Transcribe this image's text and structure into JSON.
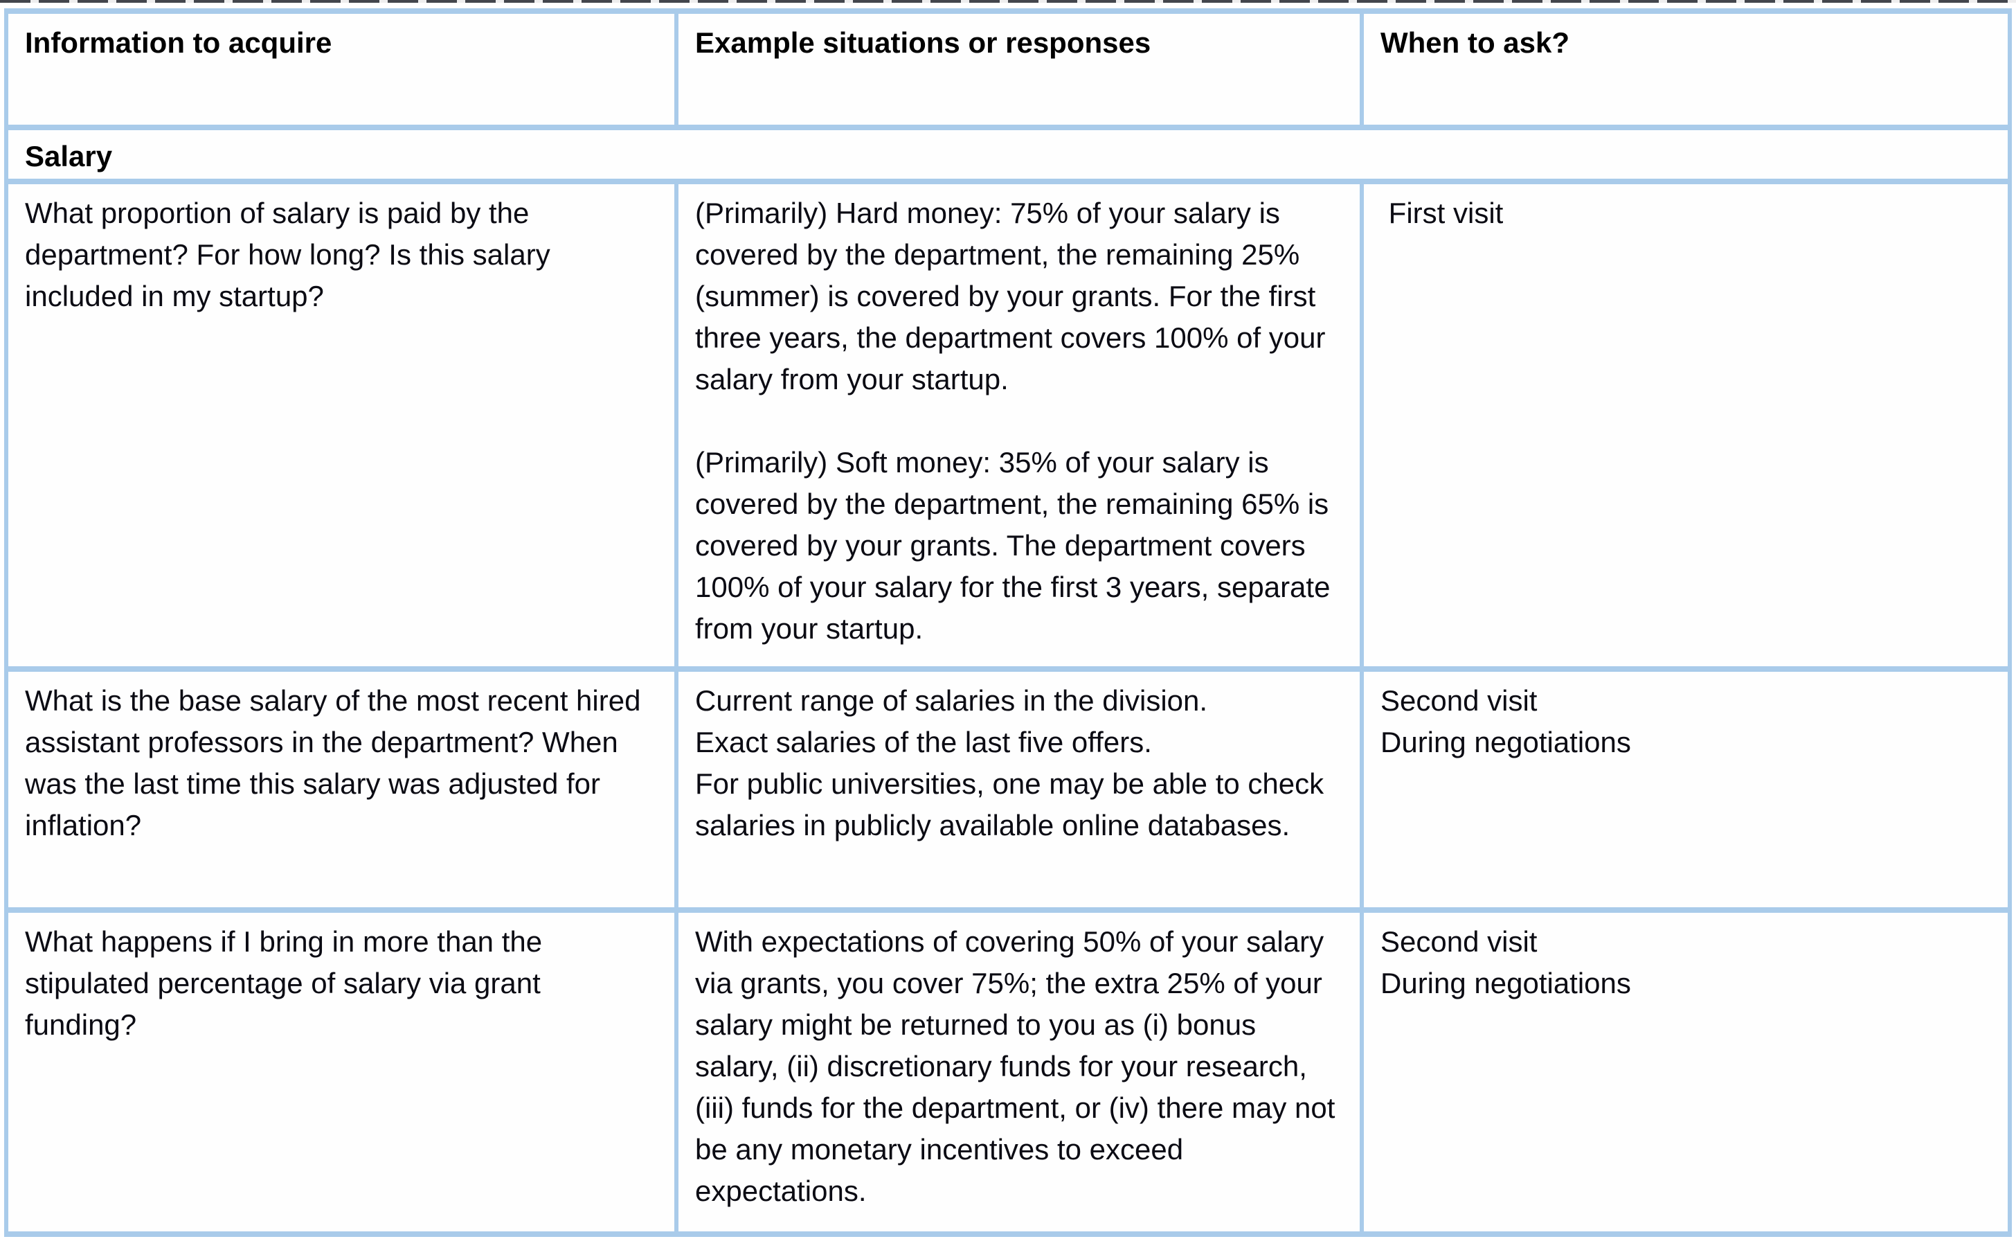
{
  "page": {
    "background_color": "#ffffff",
    "table_border_color": "#a9cbea",
    "text_color": "#0b0b13"
  },
  "table": {
    "columns": [
      "Information to acquire",
      "Example situations or responses",
      "When to ask?"
    ],
    "section_label": "Salary",
    "rows": [
      {
        "info": "What proportion of salary is paid by the department? For how long? Is this salary included in my startup?",
        "example": "(Primarily) Hard money: 75% of your salary is covered by the department, the remaining 25% (summer) is covered by your grants. For the first three years, the department covers 100% of your salary from your startup.\n\n(Primarily) Soft money: 35% of your salary is covered by the department, the remaining 65% is covered by your grants. The department covers 100% of your salary for the first 3 years, separate from your startup.",
        "when": " First visit"
      },
      {
        "info": "What is the base salary of the most recent hired assistant professors in the department? When was the last time this salary was adjusted for inflation?",
        "example": "Current range of salaries in the division.\nExact salaries of the last five offers.\nFor public universities, one may be able to check salaries in publicly available online databases.",
        "when": "Second visit\nDuring negotiations"
      },
      {
        "info": "What happens if I bring in more than the stipulated percentage of salary via grant funding?",
        "example": "With expectations of covering 50% of your salary via grants, you cover 75%; the extra 25% of your salary might be returned to you as (i) bonus salary, (ii) discretionary funds for your research, (iii) funds for the department, or (iv) there may not be any monetary incentives to exceed expectations.",
        "when": "Second visit\nDuring negotiations"
      }
    ]
  }
}
